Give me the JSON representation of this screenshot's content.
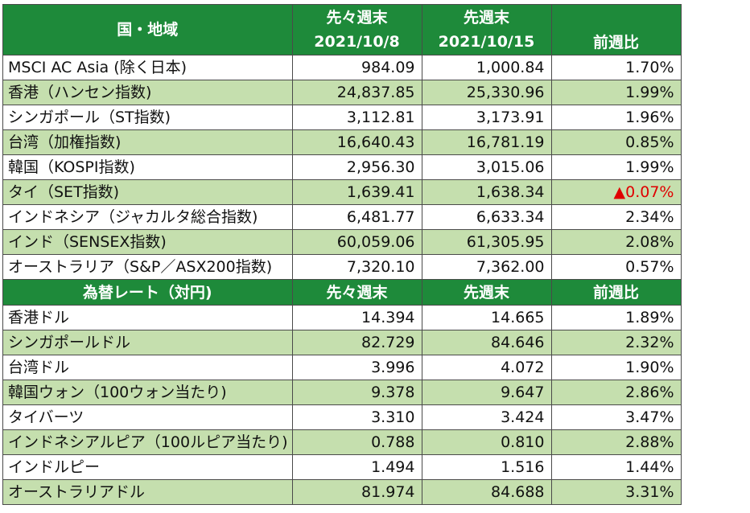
{
  "indices": {
    "headers": {
      "name": "国・地域",
      "prev2_label": "先々週末",
      "prev2_date": "2021/10/8",
      "prev1_label": "先週末",
      "prev1_date": "2021/10/15",
      "change": "前週比"
    },
    "rows": [
      {
        "name": "MSCI AC Asia (除く日本)",
        "prev2": "984.09",
        "prev1": "1,000.84",
        "change": "1.70%"
      },
      {
        "name": "香港（ハンセン指数)",
        "prev2": "24,837.85",
        "prev1": "25,330.96",
        "change": "1.99%"
      },
      {
        "name": "シンガポール（ST指数)",
        "prev2": "3,112.81",
        "prev1": "3,173.91",
        "change": "1.96%"
      },
      {
        "name": "台湾（加権指数)",
        "prev2": "16,640.43",
        "prev1": "16,781.19",
        "change": "0.85%"
      },
      {
        "name": "韓国（KOSPI指数)",
        "prev2": "2,956.30",
        "prev1": "3,015.06",
        "change": "1.99%"
      },
      {
        "name": "タイ（SET指数)",
        "prev2": "1,639.41",
        "prev1": "1,638.34",
        "change": "▲0.07%",
        "negative": true
      },
      {
        "name": "インドネシア（ジャカルタ総合指数)",
        "prev2": "6,481.77",
        "prev1": "6,633.34",
        "change": "2.34%"
      },
      {
        "name": "インド（SENSEX指数)",
        "prev2": "60,059.06",
        "prev1": "61,305.95",
        "change": "2.08%"
      },
      {
        "name": "オーストラリア（S&P／ASX200指数)",
        "prev2": "7,320.10",
        "prev1": "7,362.00",
        "change": "0.57%"
      }
    ]
  },
  "fx": {
    "headers": {
      "name": "為替レート（対円)",
      "prev2": "先々週末",
      "prev1": "先週末",
      "change": "前週比"
    },
    "rows": [
      {
        "name": "香港ドル",
        "prev2": "14.394",
        "prev1": "14.665",
        "change": "1.89%"
      },
      {
        "name": "シンガポールドル",
        "prev2": "82.729",
        "prev1": "84.646",
        "change": "2.32%"
      },
      {
        "name": "台湾ドル",
        "prev2": "3.996",
        "prev1": "4.072",
        "change": "1.90%"
      },
      {
        "name": "韓国ウォン（100ウォン当たり)",
        "prev2": "9.378",
        "prev1": "9.647",
        "change": "2.86%"
      },
      {
        "name": "タイバーツ",
        "prev2": "3.310",
        "prev1": "3.424",
        "change": "3.47%"
      },
      {
        "name": "インドネシアルピア（100ルピア当たり)",
        "prev2": "0.788",
        "prev1": "0.810",
        "change": "2.88%"
      },
      {
        "name": "インドルピー",
        "prev2": "1.494",
        "prev1": "1.516",
        "change": "1.44%"
      },
      {
        "name": "オーストラリアドル",
        "prev2": "81.974",
        "prev1": "84.688",
        "change": "3.31%"
      }
    ]
  },
  "colors": {
    "header_green": "#1e8a3a",
    "alt_row_green": "#c5dfae",
    "negative_red": "#e00000"
  }
}
